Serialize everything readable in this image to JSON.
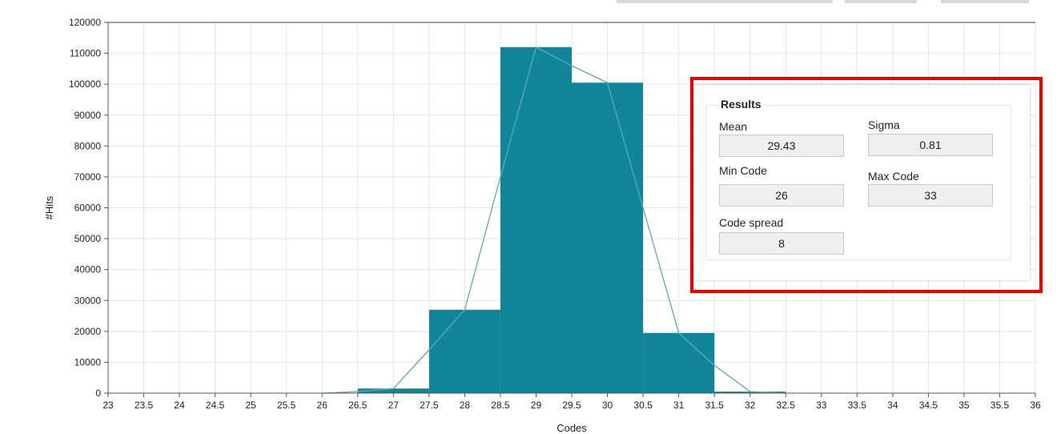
{
  "chart_data": {
    "type": "bar",
    "bin_edges": [
      26.5,
      27.5,
      28.5,
      29.5,
      30.5,
      31.5,
      32.5
    ],
    "values": [
      1500,
      27000,
      112000,
      100500,
      19500,
      500
    ],
    "overlay_line": {
      "x": [
        26,
        26.5,
        27,
        27.5,
        28,
        28.5,
        29,
        29.5,
        30,
        30.5,
        31,
        31.5,
        32,
        32.5
      ],
      "y": [
        0,
        500,
        1500,
        14000,
        27000,
        70000,
        112000,
        106000,
        100500,
        60000,
        19500,
        9000,
        500,
        0
      ]
    },
    "xlabel": "Codes",
    "ylabel": "#Hits",
    "xlim": [
      23,
      36
    ],
    "ylim": [
      0,
      120000
    ],
    "x_ticks": [
      "23",
      "23.5",
      "24",
      "24.5",
      "25",
      "25.5",
      "26",
      "26.5",
      "27",
      "27.5",
      "28",
      "28.5",
      "29",
      "29.5",
      "30",
      "30.5",
      "31",
      "31.5",
      "32",
      "32.5",
      "33",
      "33.5",
      "34",
      "34.5",
      "35",
      "35.5",
      "36"
    ],
    "y_ticks": [
      "0",
      "10000",
      "20000",
      "30000",
      "40000",
      "50000",
      "60000",
      "70000",
      "80000",
      "90000",
      "100000",
      "110000",
      "120000"
    ],
    "grid": true,
    "bar_color": "#11869a",
    "line_color": "#5aaab8"
  },
  "results": {
    "title": "Results",
    "mean_label": "Mean",
    "mean_value": "29.43",
    "sigma_label": "Sigma",
    "sigma_value": "0.81",
    "min_code_label": "Min Code",
    "min_code_value": "26",
    "max_code_label": "Max Code",
    "max_code_value": "33",
    "code_spread_label": "Code spread",
    "code_spread_value": "8"
  },
  "highlight_color": "#ee0000"
}
